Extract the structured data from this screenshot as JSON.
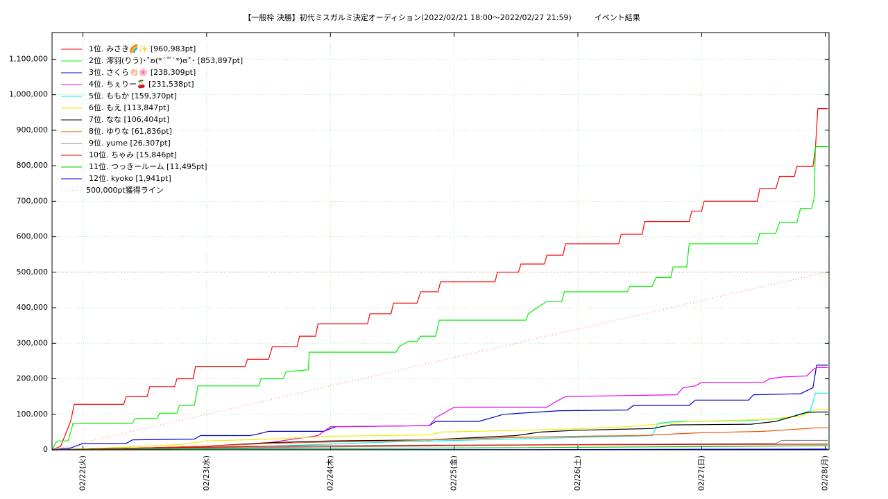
{
  "chart_data": {
    "type": "line",
    "title": "【一般枠 決勝】初代ミスガルミ決定オーディション(2022/02/21 18:00～2022/02/27 21:59)　　　イベント結果",
    "xlim": [
      21.75,
      28.03
    ],
    "xticks": [
      {
        "value": 22,
        "label": "02/22(火)"
      },
      {
        "value": 23,
        "label": "02/23(水)"
      },
      {
        "value": 24,
        "label": "02/24(木)"
      },
      {
        "value": 25,
        "label": "02/25(金)"
      },
      {
        "value": 26,
        "label": "02/26(土)"
      },
      {
        "value": 27,
        "label": "02/27(日)"
      },
      {
        "value": 28,
        "label": "02/28(月)"
      }
    ],
    "ylim": [
      0,
      1175000
    ],
    "yticks": [
      0,
      {
        "value": 100000,
        "label": "100,000"
      },
      {
        "value": 200000,
        "label": "200,000"
      },
      {
        "value": 300000,
        "label": "300,000"
      },
      {
        "value": 400000,
        "label": "400,000"
      },
      {
        "value": 500000,
        "label": "500,000"
      },
      {
        "value": 600000,
        "label": "600,000"
      },
      {
        "value": 700000,
        "label": "700,000"
      },
      {
        "value": 800000,
        "label": "800,000"
      },
      {
        "value": 900000,
        "label": "900,000"
      },
      {
        "value": 1000000,
        "label": "1,000,000"
      },
      {
        "value": 1100000,
        "label": "1,100,000"
      }
    ],
    "grid": true,
    "legend": "top-left",
    "hlines": [
      500000
    ],
    "series": [
      {
        "name": "1位. みさき🌈✨ [960,983pt]",
        "color": "#ff0000",
        "x": [
          21.75,
          21.82,
          21.9,
          21.93,
          22.33,
          22.35,
          22.52,
          22.54,
          22.74,
          22.76,
          22.89,
          22.91,
          23.31,
          23.33,
          23.5,
          23.53,
          23.73,
          23.75,
          23.88,
          23.9,
          24.3,
          24.32,
          24.49,
          24.51,
          24.7,
          24.73,
          24.87,
          24.89,
          25.33,
          25.35,
          25.52,
          25.54,
          25.73,
          25.75,
          25.88,
          25.9,
          26.33,
          26.35,
          26.52,
          26.54,
          26.9,
          26.92,
          27.0,
          27.02,
          27.45,
          27.47,
          27.6,
          27.63,
          27.75,
          27.77,
          27.9,
          27.92,
          27.94,
          28.02
        ],
        "values": [
          0,
          10000,
          80000,
          128000,
          128000,
          150000,
          150000,
          178000,
          178000,
          200000,
          200000,
          235000,
          235000,
          255000,
          255000,
          290000,
          290000,
          320000,
          320000,
          355000,
          355000,
          383000,
          383000,
          413000,
          413000,
          445000,
          445000,
          473000,
          473000,
          500000,
          500000,
          523000,
          523000,
          548000,
          548000,
          580000,
          580000,
          607000,
          607000,
          643000,
          643000,
          672000,
          672000,
          700000,
          700000,
          735000,
          735000,
          770000,
          770000,
          798000,
          798000,
          850000,
          960983,
          960983
        ]
      },
      {
        "name": "2位. 澪羽(りう)･˚ʚ(*´꒳`*)ɞ˚･ [853,897pt]",
        "color": "#00ee00",
        "x": [
          21.75,
          21.78,
          21.8,
          21.88,
          21.92,
          22.4,
          22.42,
          22.6,
          22.62,
          22.76,
          22.78,
          22.9,
          22.93,
          23.42,
          23.44,
          23.62,
          23.64,
          23.82,
          23.83,
          24.53,
          24.56,
          24.63,
          24.7,
          24.73,
          24.85,
          24.88,
          25.58,
          25.6,
          25.66,
          25.75,
          25.87,
          25.89,
          26.4,
          26.42,
          26.6,
          26.63,
          26.75,
          26.77,
          26.88,
          26.9,
          27.45,
          27.47,
          27.6,
          27.63,
          27.77,
          27.8,
          27.89,
          27.91,
          27.92,
          28.02
        ],
        "values": [
          0,
          20000,
          25000,
          25000,
          75000,
          75000,
          88000,
          88000,
          103000,
          103000,
          125000,
          125000,
          180000,
          180000,
          200000,
          200000,
          220000,
          225000,
          275000,
          275000,
          292000,
          305000,
          305000,
          320000,
          320000,
          365000,
          365000,
          383000,
          398000,
          418000,
          418000,
          445000,
          445000,
          460000,
          460000,
          485000,
          485000,
          515000,
          515000,
          580000,
          580000,
          610000,
          610000,
          640000,
          640000,
          680000,
          680000,
          710000,
          853897,
          853897
        ]
      },
      {
        "name": "3位. さくら👏🏻🌸 [238,309pt]",
        "color": "#0000cc",
        "x": [
          21.75,
          21.9,
          22.0,
          22.35,
          22.4,
          22.9,
          22.95,
          23.35,
          23.42,
          23.5,
          23.95,
          24.0,
          24.05,
          24.8,
          24.85,
          25.2,
          25.3,
          25.4,
          25.85,
          26.4,
          26.45,
          26.9,
          26.95,
          27.38,
          27.42,
          27.8,
          27.9,
          27.93,
          28.02
        ],
        "values": [
          0,
          5000,
          18000,
          18000,
          28000,
          30000,
          40000,
          40000,
          45000,
          52000,
          52000,
          60000,
          65000,
          68000,
          80000,
          80000,
          90000,
          100000,
          110000,
          112000,
          125000,
          125000,
          140000,
          140000,
          155000,
          158000,
          175000,
          238309,
          238309
        ]
      },
      {
        "name": "4位. ちぇりー🍒 [231,538pt]",
        "color": "#ee00ee",
        "x": [
          21.75,
          22.0,
          22.5,
          23.0,
          23.5,
          23.9,
          24.0,
          24.8,
          24.85,
          24.95,
          25.0,
          25.75,
          25.82,
          25.9,
          26.8,
          26.85,
          26.95,
          27.0,
          27.5,
          27.55,
          27.65,
          27.85,
          27.9,
          27.93,
          28.02
        ],
        "values": [
          0,
          2000,
          5000,
          10000,
          20000,
          40000,
          65000,
          68000,
          90000,
          110000,
          120000,
          120000,
          135000,
          150000,
          155000,
          175000,
          180000,
          190000,
          190000,
          200000,
          205000,
          208000,
          225000,
          231538,
          231538
        ]
      },
      {
        "name": "5位. ももか [159,370pt]",
        "color": "#00eeee",
        "x": [
          21.75,
          22.5,
          23.5,
          24.5,
          25.2,
          26.0,
          26.6,
          26.65,
          26.8,
          27.4,
          27.7,
          27.88,
          27.92,
          28.02
        ],
        "values": [
          0,
          3000,
          10000,
          22000,
          28000,
          35000,
          40000,
          75000,
          80000,
          82000,
          90000,
          110000,
          159370,
          159370
        ]
      },
      {
        "name": "6位. もえ [113,847pt]",
        "color": "#eeee00",
        "x": [
          21.75,
          22.2,
          22.8,
          23.0,
          23.5,
          24.0,
          24.8,
          24.9,
          25.9,
          26.4,
          26.9,
          27.5,
          27.8,
          27.93,
          28.02
        ],
        "values": [
          0,
          5000,
          15000,
          25000,
          30000,
          38000,
          42000,
          50000,
          58000,
          65000,
          80000,
          85000,
          95000,
          113847,
          113847
        ]
      },
      {
        "name": "7位. なな [106,404pt]",
        "color": "#000000",
        "x": [
          21.75,
          22.5,
          23.0,
          23.5,
          24.0,
          24.8,
          25.5,
          25.7,
          26.0,
          26.6,
          26.75,
          27.4,
          27.6,
          27.75,
          27.85,
          27.93,
          28.02
        ],
        "values": [
          0,
          5000,
          10000,
          20000,
          25000,
          28000,
          40000,
          50000,
          55000,
          60000,
          70000,
          72000,
          80000,
          95000,
          105000,
          106404,
          106404
        ]
      },
      {
        "name": "8位. ゆりな [61,836pt]",
        "color": "#ee5500",
        "x": [
          21.75,
          22.5,
          23.0,
          23.5,
          24.0,
          24.5,
          25.0,
          25.5,
          26.0,
          26.5,
          27.0,
          27.5,
          27.85,
          27.93,
          28.02
        ],
        "values": [
          0,
          5000,
          10000,
          18000,
          22000,
          25000,
          30000,
          35000,
          38000,
          40000,
          48000,
          52000,
          60000,
          61836,
          61836
        ]
      },
      {
        "name": "9位. yume [26,307pt]",
        "color": "#888888",
        "x": [
          21.75,
          23.0,
          24.5,
          26.0,
          27.6,
          27.65,
          28.02
        ],
        "values": [
          0,
          5000,
          10000,
          15000,
          18000,
          26307,
          26307
        ]
      },
      {
        "name": "10位. ちゃみ [15,846pt]",
        "color": "#ee0000",
        "x": [
          21.75,
          22.5,
          23.5,
          25.0,
          27.93,
          28.02
        ],
        "values": [
          0,
          5000,
          10000,
          13000,
          15846,
          15846
        ]
      },
      {
        "name": "11位. つっきールーム [11,495pt]",
        "color": "#00cc00",
        "x": [
          21.75,
          23.0,
          25.0,
          27.0,
          27.93,
          28.02
        ],
        "values": [
          0,
          3000,
          5000,
          9000,
          11495,
          11495
        ]
      },
      {
        "name": "12位. kyoko [1,941pt]",
        "color": "#0000ee",
        "x": [
          21.75,
          25.5,
          27.93,
          28.02
        ],
        "values": [
          0,
          500,
          1941,
          1941
        ]
      },
      {
        "name": "500,000pt獲得ライン",
        "color": "#ff8888",
        "dashed": true,
        "x": [
          21.75,
          28.0
        ],
        "values": [
          0,
          500000
        ]
      }
    ]
  }
}
